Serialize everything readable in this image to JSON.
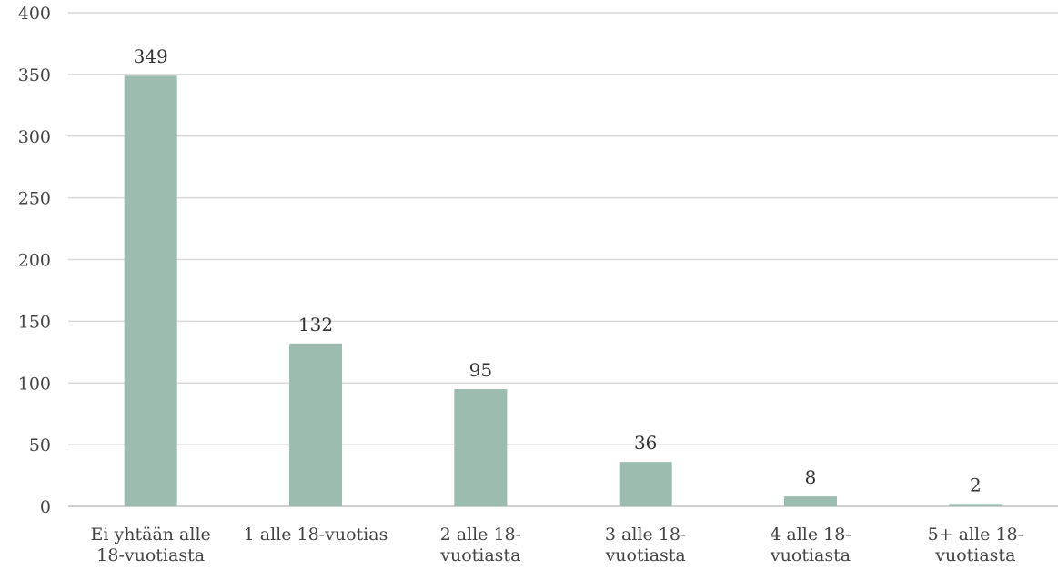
{
  "chart_data": {
    "type": "bar",
    "categories": [
      [
        "Ei yhtään alle",
        "18-vuotiasta"
      ],
      [
        "1 alle 18-vuotias"
      ],
      [
        "2 alle 18-",
        "vuotiasta"
      ],
      [
        "3 alle 18-",
        "vuotiasta"
      ],
      [
        "4 alle 18-",
        "vuotiasta"
      ],
      [
        "5+ alle 18-",
        "vuotiasta"
      ]
    ],
    "values": [
      349,
      132,
      95,
      36,
      8,
      2
    ],
    "data_labels": [
      "349",
      "132",
      "95",
      "36",
      "8",
      "2"
    ],
    "y_ticks": [
      "0",
      "50",
      "100",
      "150",
      "200",
      "250",
      "300",
      "350",
      "400"
    ],
    "ylim": [
      0,
      400
    ],
    "title": "",
    "xlabel": "",
    "ylabel": "",
    "grid": true,
    "legend": "none",
    "bar_color": "#9dbcb0"
  }
}
